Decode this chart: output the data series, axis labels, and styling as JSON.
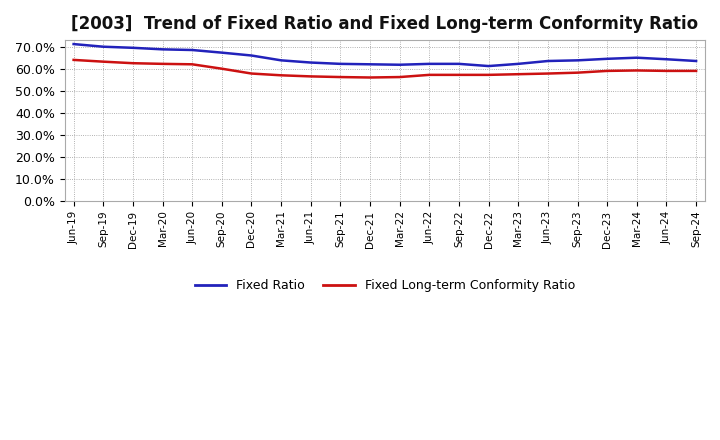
{
  "title": "[2003]  Trend of Fixed Ratio and Fixed Long-term Conformity Ratio",
  "ylim": [
    0.0,
    0.73
  ],
  "yticks": [
    0.0,
    0.1,
    0.2,
    0.3,
    0.4,
    0.5,
    0.6,
    0.7
  ],
  "ytick_labels": [
    "0.0%",
    "10.0%",
    "20.0%",
    "30.0%",
    "40.0%",
    "50.0%",
    "60.0%",
    "70.0%"
  ],
  "x_labels": [
    "Jun-19",
    "Sep-19",
    "Dec-19",
    "Mar-20",
    "Jun-20",
    "Sep-20",
    "Dec-20",
    "Mar-21",
    "Jun-21",
    "Sep-21",
    "Dec-21",
    "Mar-22",
    "Jun-22",
    "Sep-22",
    "Dec-22",
    "Mar-23",
    "Jun-23",
    "Sep-23",
    "Dec-23",
    "Mar-24",
    "Jun-24",
    "Sep-24"
  ],
  "fixed_ratio": [
    0.712,
    0.7,
    0.695,
    0.688,
    0.685,
    0.673,
    0.66,
    0.638,
    0.628,
    0.622,
    0.62,
    0.618,
    0.622,
    0.622,
    0.612,
    0.622,
    0.635,
    0.638,
    0.645,
    0.65,
    0.643,
    0.635
  ],
  "fixed_lt_ratio": [
    0.64,
    0.632,
    0.625,
    0.622,
    0.62,
    0.6,
    0.578,
    0.57,
    0.565,
    0.562,
    0.56,
    0.562,
    0.572,
    0.572,
    0.572,
    0.575,
    0.578,
    0.582,
    0.59,
    0.592,
    0.59,
    0.59
  ],
  "blue_color": "#2222bb",
  "red_color": "#cc1111",
  "grid_color": "#999999",
  "bg_color": "#ffffff",
  "legend_fixed": "Fixed Ratio",
  "legend_lt": "Fixed Long-term Conformity Ratio",
  "title_fontsize": 12,
  "axis_fontsize": 9
}
